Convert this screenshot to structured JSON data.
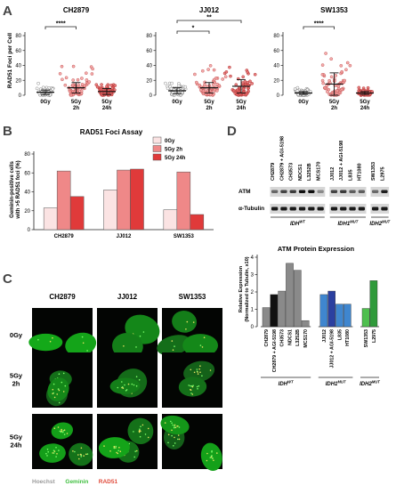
{
  "panels": {
    "A": "A",
    "B": "B",
    "C": "C",
    "D": "D"
  },
  "panelA": {
    "ylabel": "RAD51 Foci per Cell",
    "ytick_labels": [
      "0",
      "20",
      "40",
      "60",
      "80"
    ],
    "xtick_lines": [
      [
        "0Gy",
        ""
      ],
      [
        "5Gy",
        "2h"
      ],
      [
        "5Gy",
        "24h"
      ]
    ],
    "groups": [
      {
        "title": "CH2879",
        "sig": [
          {
            "label": "****",
            "from": 0,
            "to": 1
          }
        ]
      },
      {
        "title": "JJ012",
        "sig": [
          {
            "label": "*",
            "from": 0,
            "to": 1
          },
          {
            "label": "**",
            "from": 0,
            "to": 2
          }
        ]
      },
      {
        "title": "SW1353",
        "sig": [
          {
            "label": "****",
            "from": 0,
            "to": 1
          }
        ]
      }
    ]
  },
  "chart_data": [
    {
      "type": "scatter",
      "title": "CH2879",
      "ylabel": "RAD51 Foci per Cell",
      "categories": [
        "0Gy",
        "5Gy 2h",
        "5Gy 24h"
      ],
      "ylim": [
        0,
        80
      ],
      "mean": [
        4,
        10,
        5
      ],
      "sd": [
        3,
        7,
        4
      ],
      "max": [
        20,
        46,
        31
      ]
    },
    {
      "type": "scatter",
      "title": "JJ012",
      "categories": [
        "0Gy",
        "5Gy 2h",
        "5Gy 24h"
      ],
      "ylim": [
        0,
        80
      ],
      "mean": [
        6,
        10,
        12
      ],
      "sd": [
        4,
        7,
        9
      ],
      "max": [
        16,
        41,
        50
      ]
    },
    {
      "type": "scatter",
      "title": "SW1353",
      "categories": [
        "0Gy",
        "5Gy 2h",
        "5Gy 24h"
      ],
      "ylim": [
        0,
        80
      ],
      "mean": [
        3,
        15,
        3
      ],
      "sd": [
        2,
        15,
        2
      ],
      "max": [
        10,
        70,
        13
      ]
    },
    {
      "type": "bar",
      "title": "RAD51 Foci Assay",
      "ylabel": "Geminin-positive cells with >5 RAD51 foci (%)",
      "categories": [
        "CH2879",
        "JJ012",
        "SW1353"
      ],
      "ylim": [
        0,
        80
      ],
      "yticks": [
        0,
        20,
        40,
        60,
        80
      ],
      "series": [
        {
          "name": "0Gy",
          "color": "#fbe3e3",
          "values": [
            23,
            42,
            21
          ]
        },
        {
          "name": "5Gy 2h",
          "color": "#ef8888",
          "values": [
            62,
            63,
            61
          ]
        },
        {
          "name": "5Gy 24h",
          "color": "#e03a3a",
          "values": [
            35,
            64,
            16
          ]
        }
      ],
      "legend": "top-right"
    },
    {
      "type": "bar",
      "title": "ATM Protein Expression",
      "ylabel": "Relative Expression (Normalized to Tubulin, x10)",
      "ylim": [
        0,
        4
      ],
      "yticks": [
        0,
        1,
        2,
        3,
        4
      ],
      "categories": [
        "CH2879",
        "CH2879 + AGI-5198",
        "CH3573",
        "NDCS1",
        "L3252B",
        "MCS170",
        "JJ012",
        "JJ012 + AGI-5198",
        "L835",
        "HT1080",
        "SW1353",
        "L2975"
      ],
      "values": [
        1.1,
        1.85,
        2.05,
        3.65,
        3.25,
        0.35,
        1.85,
        2.05,
        1.3,
        1.3,
        1.05,
        2.65
      ],
      "colors": [
        "#8a8a8a",
        "#111111",
        "#8a8a8a",
        "#8a8a8a",
        "#8a8a8a",
        "#8a8a8a",
        "#3f86cf",
        "#2b3fa0",
        "#3f86cf",
        "#3f86cf",
        "#4fbf4f",
        "#2f9a3a"
      ],
      "group_labels": [
        "IDH^WT",
        "IDH1^MUT",
        "IDH2^MUT"
      ]
    }
  ],
  "panelB": {
    "title": "RAD51 Foci Assay",
    "ylabel_lines": [
      "Geminin-positive cells",
      "with >5 RAD51 foci (%)"
    ],
    "ytick_labels": [
      "0",
      "20",
      "40",
      "60",
      "80"
    ],
    "xtick_labels": [
      "CH2879",
      "JJ012",
      "SW1353"
    ],
    "legend": [
      "0Gy",
      "5Gy 2h",
      "5Gy 24h"
    ]
  },
  "panelC": {
    "col_labels": [
      "CH2879",
      "JJ012",
      "SW1353"
    ],
    "row_labels": [
      [
        "0Gy"
      ],
      [
        "5Gy",
        "2h"
      ],
      [
        "5Gy",
        "24h"
      ]
    ],
    "stain_labels": [
      {
        "text": "Hoechst",
        "color": "#9a9a9a"
      },
      {
        "text": "Geminin",
        "color": "#3fbf3f"
      },
      {
        "text": "RAD51",
        "color": "#e04a3a"
      }
    ]
  },
  "panelD": {
    "blot_cols": [
      "CH2879",
      "CH2879 + AGI-5198",
      "CH3573",
      "NDCS1",
      "L3252B",
      "MCS170",
      "JJ012",
      "JJ012 + AGI-5198",
      "L835",
      "HT1080",
      "SW1353",
      "L2975"
    ],
    "row_labels": [
      "ATM",
      "α-Tubulin"
    ],
    "groups": [
      {
        "base": "IDH",
        "sup": "WT"
      },
      {
        "base": "IDH1",
        "sup": "MUT"
      },
      {
        "base": "IDH2",
        "sup": "MUT"
      }
    ],
    "chart_title": "ATM Protein Expression",
    "ylabel_lines": [
      "Relative Expression",
      "(Normalized to Tubulin, x10)"
    ],
    "ytick_labels": [
      "0",
      "1",
      "2",
      "3",
      "4"
    ]
  }
}
